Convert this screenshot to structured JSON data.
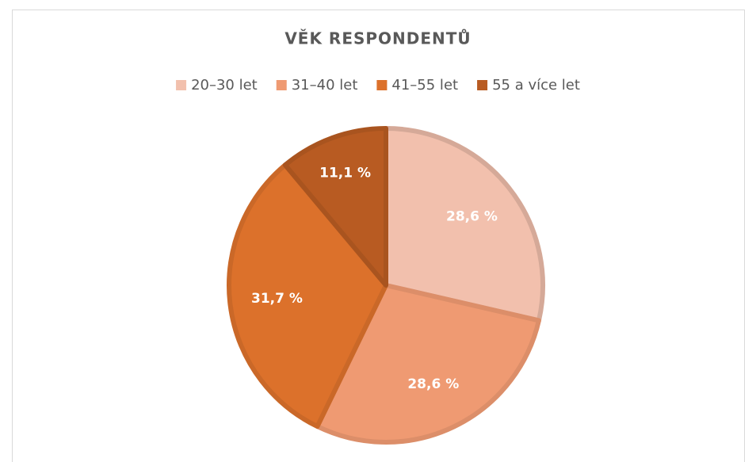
{
  "chart_data": {
    "type": "pie",
    "title": "VĚK RESPONDENTŮ",
    "categories": [
      "20–30 let",
      "31–40 let",
      "41–55 let",
      "55 a více let"
    ],
    "values": [
      28.6,
      28.6,
      31.7,
      11.1
    ],
    "value_labels": [
      "28,6 %",
      "28,6 %",
      "31,7 %",
      "11,1 %"
    ],
    "colors": [
      "#f2c0ad",
      "#ef9a72",
      "#dc712b",
      "#b85b22"
    ],
    "legend": "top"
  }
}
